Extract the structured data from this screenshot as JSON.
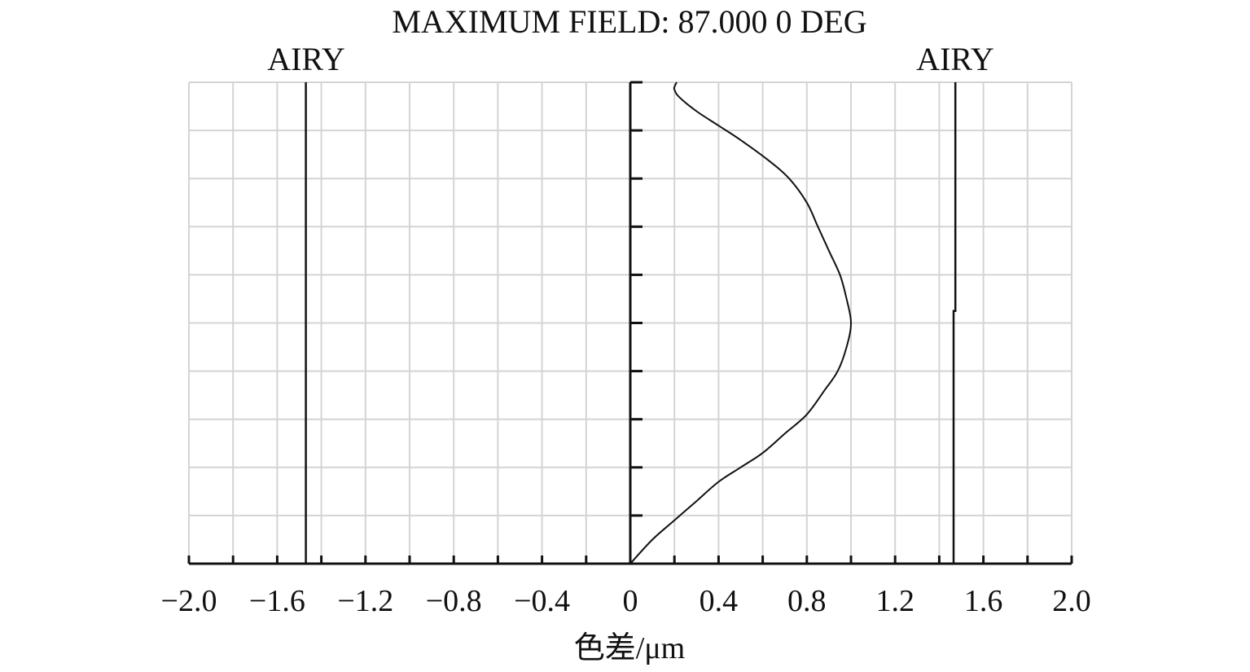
{
  "chart_data": {
    "type": "line",
    "title": "MAXIMUM FIELD: 87.000 0 DEG",
    "xlabel": "色差/μm",
    "ylabel": "",
    "xlim": [
      -2.0,
      2.0
    ],
    "ylim": [
      0,
      1
    ],
    "grid": true,
    "x_ticks": [
      -2.0,
      -1.6,
      -1.2,
      -0.8,
      -0.4,
      0,
      0.4,
      0.8,
      1.2,
      1.6,
      2.0
    ],
    "x_tick_labels": [
      "−2.0",
      "−1.6",
      "−1.2",
      "−0.8",
      "−0.4",
      "0",
      "0.4",
      "0.8",
      "1.2",
      "1.6",
      "2.0"
    ],
    "y_ticks": [
      0,
      0.1,
      0.2,
      0.3,
      0.4,
      0.5,
      0.6,
      0.7,
      0.8,
      0.9,
      1.0
    ],
    "airy_labels": [
      "AIRY",
      "AIRY"
    ],
    "airy_left": {
      "x": [
        -1.47,
        -1.47
      ],
      "y": [
        0,
        1
      ]
    },
    "airy_right": {
      "x": [
        1.465,
        1.465,
        1.473,
        1.473
      ],
      "y": [
        0,
        0.525,
        0.525,
        1
      ]
    },
    "series": [
      {
        "x": [
          0.0,
          0.1,
          0.2,
          0.3,
          0.4,
          0.5,
          0.6,
          0.7,
          0.8,
          0.88,
          0.94,
          0.98,
          1.0,
          0.98,
          0.95,
          0.9,
          0.85,
          0.8,
          0.72,
          0.62,
          0.5,
          0.4,
          0.3,
          0.22,
          0.2,
          0.2,
          0.21
        ],
        "y": [
          0.0,
          0.05,
          0.09,
          0.13,
          0.17,
          0.2,
          0.23,
          0.27,
          0.31,
          0.36,
          0.4,
          0.45,
          0.5,
          0.55,
          0.6,
          0.65,
          0.7,
          0.75,
          0.8,
          0.84,
          0.88,
          0.91,
          0.94,
          0.97,
          0.985,
          0.99,
          1.0
        ]
      }
    ]
  }
}
